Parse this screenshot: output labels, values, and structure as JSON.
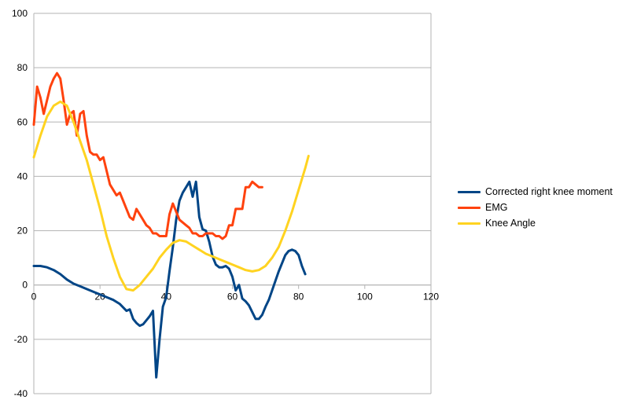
{
  "chart_data": {
    "type": "line",
    "title": "",
    "xlabel": "",
    "ylabel": "",
    "xlim": [
      0,
      120
    ],
    "ylim": [
      -40,
      100
    ],
    "x_ticks": [
      0,
      20,
      40,
      60,
      80,
      100,
      120
    ],
    "y_ticks": [
      -40,
      -20,
      0,
      20,
      40,
      60,
      80,
      100
    ],
    "grid": "horizontal",
    "legend_position": "right",
    "series": [
      {
        "name": "Corrected right knee moment",
        "color": "#004586",
        "points": [
          [
            0,
            7
          ],
          [
            2,
            7
          ],
          [
            4,
            6.5
          ],
          [
            6,
            5.5
          ],
          [
            8,
            4
          ],
          [
            10,
            2
          ],
          [
            12,
            0.5
          ],
          [
            14,
            -0.5
          ],
          [
            16,
            -1.5
          ],
          [
            18,
            -2.5
          ],
          [
            20,
            -3.5
          ],
          [
            22,
            -4.5
          ],
          [
            24,
            -5.5
          ],
          [
            26,
            -7
          ],
          [
            28,
            -9.5
          ],
          [
            29,
            -9
          ],
          [
            30,
            -12.5
          ],
          [
            31,
            -14
          ],
          [
            32,
            -15
          ],
          [
            33,
            -14.5
          ],
          [
            34,
            -13
          ],
          [
            35,
            -11.5
          ],
          [
            36,
            -9.5
          ],
          [
            37,
            -34
          ],
          [
            38,
            -20
          ],
          [
            39,
            -8
          ],
          [
            40,
            -4.5
          ],
          [
            41,
            5
          ],
          [
            42,
            14
          ],
          [
            43,
            24
          ],
          [
            44,
            31
          ],
          [
            45,
            34
          ],
          [
            46,
            36
          ],
          [
            47,
            38
          ],
          [
            48,
            32.5
          ],
          [
            49,
            38
          ],
          [
            50,
            25
          ],
          [
            51,
            20.5
          ],
          [
            52,
            20
          ],
          [
            53,
            16
          ],
          [
            54,
            10.5
          ],
          [
            55,
            7.5
          ],
          [
            56,
            6.5
          ],
          [
            57,
            6.5
          ],
          [
            58,
            7
          ],
          [
            59,
            6
          ],
          [
            60,
            3
          ],
          [
            61,
            -2
          ],
          [
            62,
            0
          ],
          [
            63,
            -5
          ],
          [
            64,
            -6
          ],
          [
            65,
            -7.5
          ],
          [
            66,
            -10
          ],
          [
            67,
            -12.5
          ],
          [
            68,
            -12.5
          ],
          [
            69,
            -11
          ],
          [
            70,
            -8
          ],
          [
            71,
            -5.5
          ],
          [
            72,
            -2
          ],
          [
            73,
            1.5
          ],
          [
            74,
            5
          ],
          [
            75,
            8
          ],
          [
            76,
            11
          ],
          [
            77,
            12.5
          ],
          [
            78,
            13
          ],
          [
            79,
            12.5
          ],
          [
            80,
            11
          ],
          [
            81,
            7
          ],
          [
            82,
            4
          ]
        ]
      },
      {
        "name": "EMG",
        "color": "#ff420e",
        "points": [
          [
            0,
            59
          ],
          [
            1,
            73
          ],
          [
            2,
            69
          ],
          [
            3,
            63
          ],
          [
            4,
            68
          ],
          [
            5,
            73
          ],
          [
            6,
            76
          ],
          [
            7,
            78
          ],
          [
            8,
            76
          ],
          [
            9,
            68
          ],
          [
            10,
            59
          ],
          [
            11,
            63
          ],
          [
            12,
            64
          ],
          [
            13,
            55
          ],
          [
            14,
            63
          ],
          [
            15,
            64
          ],
          [
            16,
            55
          ],
          [
            17,
            49
          ],
          [
            18,
            48
          ],
          [
            19,
            48
          ],
          [
            20,
            46
          ],
          [
            21,
            47
          ],
          [
            22,
            42
          ],
          [
            23,
            37
          ],
          [
            24,
            35
          ],
          [
            25,
            33
          ],
          [
            26,
            34
          ],
          [
            27,
            31
          ],
          [
            28,
            28
          ],
          [
            29,
            25
          ],
          [
            30,
            24
          ],
          [
            31,
            28
          ],
          [
            32,
            26
          ],
          [
            33,
            24
          ],
          [
            34,
            22
          ],
          [
            35,
            21
          ],
          [
            36,
            19
          ],
          [
            37,
            19
          ],
          [
            38,
            18
          ],
          [
            39,
            18
          ],
          [
            40,
            18
          ],
          [
            41,
            26
          ],
          [
            42,
            30
          ],
          [
            43,
            27
          ],
          [
            44,
            24
          ],
          [
            45,
            23
          ],
          [
            46,
            22
          ],
          [
            47,
            21
          ],
          [
            48,
            19
          ],
          [
            49,
            19
          ],
          [
            50,
            18
          ],
          [
            51,
            18
          ],
          [
            52,
            19
          ],
          [
            53,
            19
          ],
          [
            54,
            19
          ],
          [
            55,
            18
          ],
          [
            56,
            18
          ],
          [
            57,
            17
          ],
          [
            58,
            18
          ],
          [
            59,
            22
          ],
          [
            60,
            22
          ],
          [
            61,
            28
          ],
          [
            62,
            28
          ],
          [
            63,
            28
          ],
          [
            64,
            36
          ],
          [
            65,
            36
          ],
          [
            66,
            38
          ],
          [
            67,
            37
          ],
          [
            68,
            36
          ],
          [
            69,
            36
          ]
        ]
      },
      {
        "name": "Knee Angle",
        "color": "#ffd320",
        "points": [
          [
            0,
            47
          ],
          [
            2,
            55
          ],
          [
            4,
            62
          ],
          [
            6,
            66
          ],
          [
            8,
            67.5
          ],
          [
            10,
            66
          ],
          [
            12,
            60
          ],
          [
            14,
            53
          ],
          [
            16,
            46
          ],
          [
            18,
            37
          ],
          [
            20,
            28
          ],
          [
            22,
            18
          ],
          [
            24,
            10
          ],
          [
            26,
            3
          ],
          [
            28,
            -1.5
          ],
          [
            30,
            -2
          ],
          [
            32,
            0
          ],
          [
            34,
            3
          ],
          [
            36,
            6
          ],
          [
            38,
            10
          ],
          [
            40,
            13
          ],
          [
            42,
            15.5
          ],
          [
            44,
            16.5
          ],
          [
            46,
            16
          ],
          [
            48,
            14.5
          ],
          [
            50,
            13
          ],
          [
            52,
            11.5
          ],
          [
            54,
            10.5
          ],
          [
            56,
            9.5
          ],
          [
            58,
            8.5
          ],
          [
            60,
            7.5
          ],
          [
            62,
            6.5
          ],
          [
            64,
            5.5
          ],
          [
            66,
            5
          ],
          [
            68,
            5.5
          ],
          [
            70,
            7
          ],
          [
            72,
            10
          ],
          [
            74,
            14
          ],
          [
            76,
            20
          ],
          [
            78,
            27
          ],
          [
            80,
            35
          ],
          [
            82,
            43
          ],
          [
            83,
            47.5
          ]
        ]
      }
    ]
  }
}
